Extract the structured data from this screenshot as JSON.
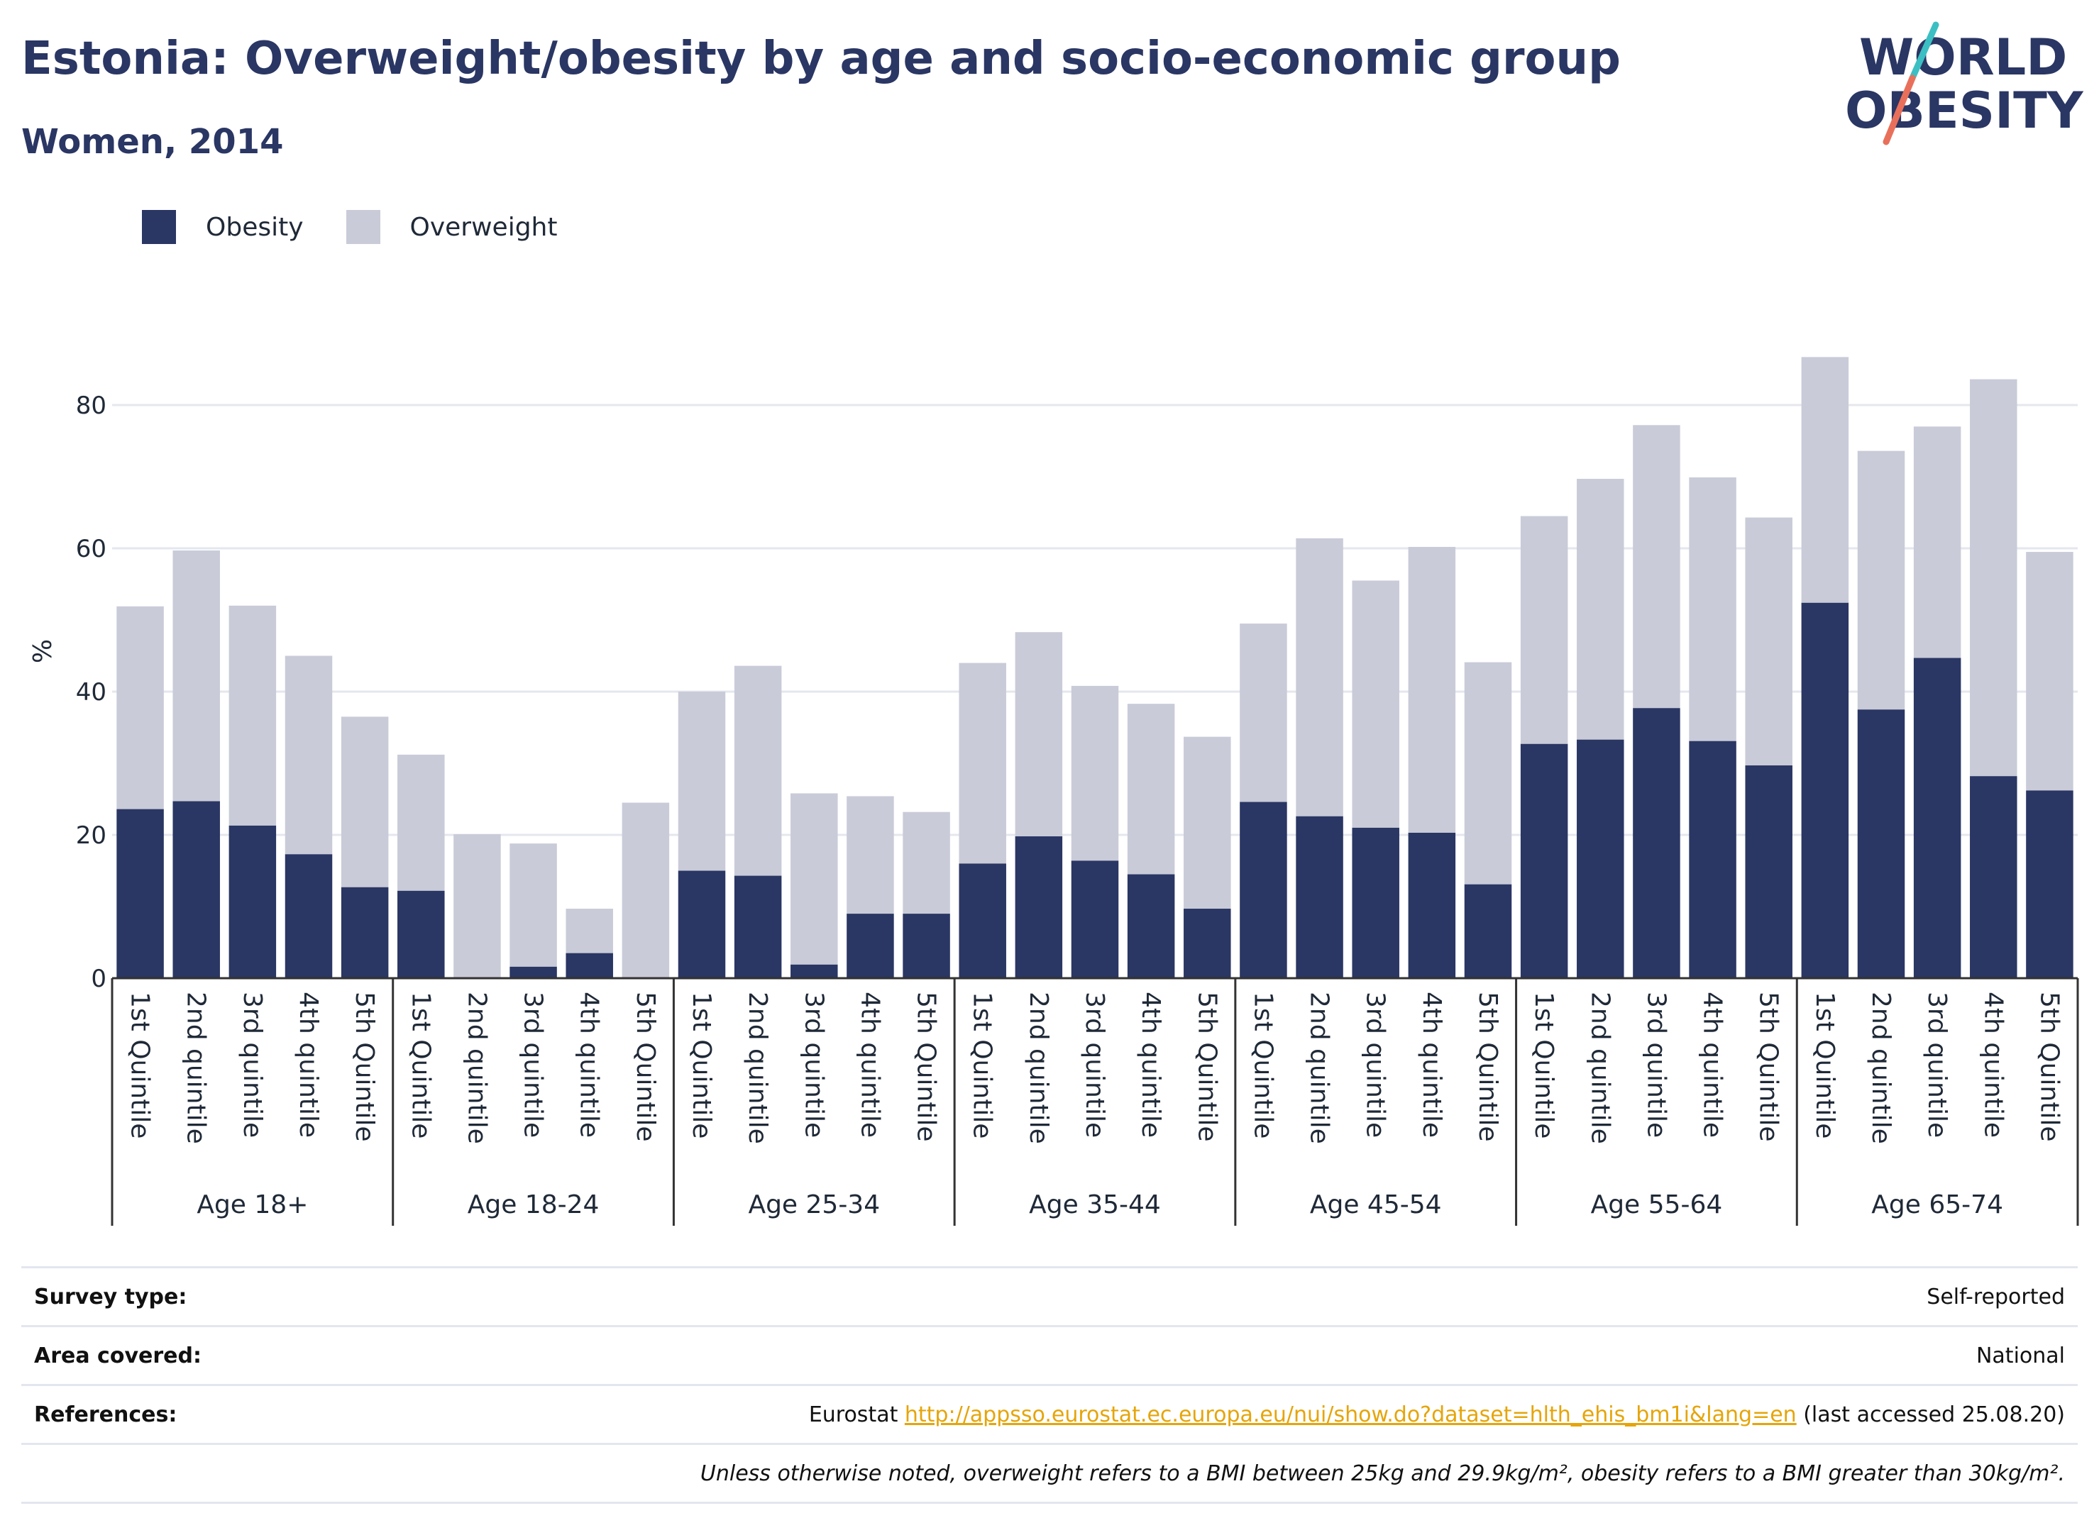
{
  "title": "Estonia: Overweight/obesity by age and socio-economic group",
  "subtitle": "Women, 2014",
  "logo": {
    "line1": "WORLD",
    "line2": "OBESITY",
    "colors": {
      "text": "#2a3663",
      "slash_top": "#3cbfc2",
      "slash_bottom": "#e8705b"
    }
  },
  "legend": [
    {
      "label": "Obesity",
      "color": "#2a3663"
    },
    {
      "label": "Overweight",
      "color": "#c9cbd8"
    }
  ],
  "chart_data": {
    "type": "bar",
    "stacked": true,
    "ylabel": "%",
    "ylim": [
      0,
      90
    ],
    "yticks": [
      0,
      20,
      40,
      60,
      80
    ],
    "grid": true,
    "legend_position": "top-left",
    "groups": [
      {
        "label": "Age 18+",
        "categories": [
          "1st Quintile",
          "2nd quintile",
          "3rd quintile",
          "4th quintile",
          "5th Quintile"
        ]
      },
      {
        "label": "Age 18-24",
        "categories": [
          "1st Quintile",
          "2nd quintile",
          "3rd quintile",
          "4th quintile",
          "5th Quintile"
        ]
      },
      {
        "label": "Age 25-34",
        "categories": [
          "1st Quintile",
          "2nd quintile",
          "3rd quintile",
          "4th quintile",
          "5th Quintile"
        ]
      },
      {
        "label": "Age 35-44",
        "categories": [
          "1st Quintile",
          "2nd quintile",
          "3rd quintile",
          "4th quintile",
          "5th Quintile"
        ]
      },
      {
        "label": "Age 45-54",
        "categories": [
          "1st Quintile",
          "2nd quintile",
          "3rd quintile",
          "4th quintile",
          "5th Quintile"
        ]
      },
      {
        "label": "Age 55-64",
        "categories": [
          "1st Quintile",
          "2nd quintile",
          "3rd quintile",
          "4th quintile",
          "5th Quintile"
        ]
      },
      {
        "label": "Age 65-74",
        "categories": [
          "1st Quintile",
          "2nd quintile",
          "3rd quintile",
          "4th quintile",
          "5th Quintile"
        ]
      }
    ],
    "series": [
      {
        "name": "Obesity",
        "color": "#2a3663",
        "values": [
          23.6,
          24.7,
          21.3,
          17.3,
          12.7,
          12.2,
          0,
          1.6,
          3.5,
          0,
          15.0,
          14.3,
          1.9,
          9.0,
          9.0,
          16.0,
          19.8,
          16.4,
          14.5,
          9.7,
          24.6,
          22.6,
          21.0,
          20.3,
          13.1,
          32.7,
          33.3,
          37.7,
          33.1,
          29.7,
          52.4,
          37.5,
          44.7,
          28.2,
          26.2
        ]
      },
      {
        "name": "Overweight",
        "color": "#c9cbd8",
        "values": [
          28.3,
          35.0,
          30.7,
          27.7,
          23.8,
          19.0,
          20.1,
          17.2,
          6.2,
          24.5,
          25.0,
          29.3,
          23.9,
          16.4,
          14.2,
          28.0,
          28.5,
          24.4,
          23.8,
          24.0,
          24.9,
          38.8,
          34.5,
          39.9,
          31.0,
          31.8,
          36.4,
          39.5,
          36.8,
          34.6,
          34.3,
          36.1,
          32.3,
          55.4,
          33.3
        ]
      }
    ]
  },
  "info": {
    "survey_type": {
      "label": "Survey type:",
      "value": "Self-reported"
    },
    "area_covered": {
      "label": "Area covered:",
      "value": "National"
    },
    "references": {
      "label": "References:",
      "prefix": "Eurostat ",
      "link": "http://appsso.eurostat.ec.europa.eu/nui/show.do?dataset=hlth_ehis_bm1i&lang=en",
      "suffix": " (last accessed 25.08.20)"
    },
    "note": "Unless otherwise noted, overweight refers to a BMI between 25kg and 29.9kg/m², obesity refers to a BMI greater than 30kg/m²."
  }
}
